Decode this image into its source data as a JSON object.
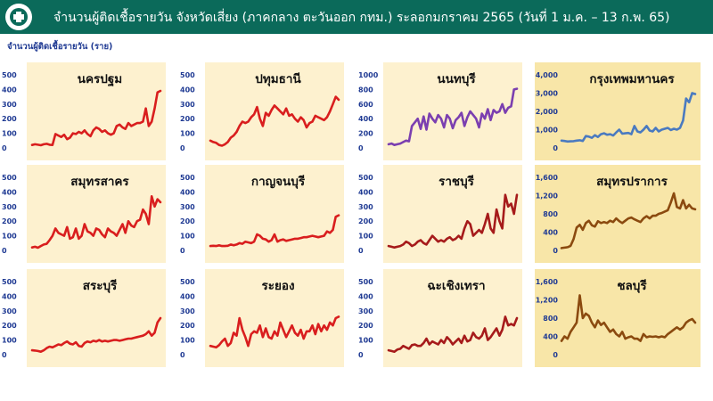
{
  "header": {
    "title": "จำนวนผู้ติดเชื้อรายวัน  จังหวัดเสี่ยง (ภาคกลาง ตะวันออก กทม.) ระลอกมกราคม 2565 (วันที่ 1 ม.ค. – 13 ก.พ. 65)",
    "subtitle": "จำนวนผู้ติดเชื้อรายวัน (ราย)"
  },
  "colors": {
    "header_bg": "#0b6a5a",
    "panel_bg_light": "#fdf1cf",
    "panel_bg_tan": "#f8e6a8",
    "red": "#d91e1e",
    "darkred": "#a61b1b",
    "purple": "#7b3fb0",
    "blue": "#4a7ac0",
    "brown": "#8b4a0f"
  },
  "chart_data": [
    {
      "type": "line",
      "title": "นครปฐม",
      "color": "#d91e1e",
      "ylim": [
        0,
        500
      ],
      "yticks": [
        "0",
        "100",
        "200",
        "300",
        "400",
        "500"
      ],
      "values": [
        20,
        25,
        22,
        18,
        25,
        28,
        22,
        20,
        95,
        85,
        75,
        90,
        60,
        70,
        100,
        95,
        110,
        100,
        120,
        95,
        80,
        120,
        140,
        130,
        110,
        120,
        100,
        90,
        100,
        150,
        160,
        140,
        130,
        170,
        150,
        160,
        170,
        170,
        180,
        270,
        150,
        180,
        270,
        380,
        390
      ]
    },
    {
      "type": "line",
      "title": "ปทุมธานี",
      "color": "#d91e1e",
      "ylim": [
        0,
        500
      ],
      "yticks": [
        "0",
        "100",
        "200",
        "300",
        "400",
        "500"
      ],
      "values": [
        50,
        40,
        35,
        20,
        15,
        25,
        40,
        70,
        85,
        110,
        150,
        180,
        170,
        180,
        210,
        230,
        280,
        200,
        150,
        240,
        220,
        260,
        290,
        270,
        250,
        230,
        270,
        220,
        230,
        200,
        180,
        210,
        190,
        140,
        170,
        180,
        220,
        210,
        200,
        190,
        210,
        250,
        300,
        350,
        330
      ]
    },
    {
      "type": "line",
      "title": "นนทบุรี",
      "color": "#7b3fb0",
      "ylim": [
        0,
        1000
      ],
      "yticks": [
        "0",
        "200",
        "400",
        "600",
        "800",
        "1000"
      ],
      "values": [
        50,
        60,
        40,
        50,
        60,
        80,
        100,
        90,
        300,
        350,
        400,
        260,
        430,
        250,
        470,
        400,
        350,
        450,
        400,
        280,
        450,
        400,
        270,
        380,
        420,
        480,
        300,
        420,
        500,
        450,
        400,
        280,
        470,
        400,
        530,
        380,
        520,
        480,
        500,
        600,
        480,
        550,
        570,
        800,
        810
      ]
    },
    {
      "type": "line",
      "title": "กรุงเทพมหานคร",
      "color": "#4a7ac0",
      "ylim": [
        0,
        4000
      ],
      "yticks": [
        "0",
        "1,000",
        "2,000",
        "3,000",
        "4,000"
      ],
      "values": [
        400,
        380,
        350,
        360,
        370,
        400,
        420,
        380,
        650,
        620,
        550,
        700,
        600,
        750,
        800,
        720,
        750,
        680,
        850,
        1000,
        780,
        800,
        820,
        750,
        1200,
        900,
        850,
        1000,
        1200,
        950,
        900,
        1100,
        900,
        1000,
        1050,
        1100,
        980,
        1050,
        1000,
        1100,
        1500,
        2700,
        2500,
        3000,
        2950
      ]
    },
    {
      "type": "line",
      "title": "สมุทรสาคร",
      "color": "#d91e1e",
      "ylim": [
        0,
        500
      ],
      "yticks": [
        "0",
        "100",
        "200",
        "300",
        "400",
        "500"
      ],
      "values": [
        20,
        25,
        18,
        30,
        40,
        45,
        70,
        100,
        150,
        120,
        110,
        100,
        160,
        80,
        90,
        150,
        80,
        100,
        180,
        130,
        120,
        100,
        150,
        140,
        110,
        90,
        150,
        130,
        120,
        100,
        140,
        180,
        120,
        200,
        170,
        160,
        200,
        210,
        280,
        250,
        180,
        370,
        300,
        350,
        330
      ]
    },
    {
      "type": "line",
      "title": "กาญจนบุรี",
      "color": "#d91e1e",
      "ylim": [
        0,
        500
      ],
      "yticks": [
        "0",
        "100",
        "200",
        "300",
        "400",
        "500"
      ],
      "values": [
        30,
        32,
        30,
        35,
        30,
        30,
        32,
        40,
        35,
        40,
        50,
        45,
        60,
        55,
        50,
        60,
        110,
        100,
        80,
        75,
        60,
        70,
        110,
        60,
        70,
        75,
        65,
        70,
        75,
        80,
        80,
        85,
        90,
        90,
        95,
        100,
        95,
        90,
        95,
        100,
        130,
        120,
        140,
        230,
        240
      ]
    },
    {
      "type": "line",
      "title": "ราชบุรี",
      "color": "#a61b1b",
      "ylim": [
        0,
        500
      ],
      "yticks": [
        "0",
        "100",
        "200",
        "300",
        "400",
        "500"
      ],
      "values": [
        30,
        25,
        20,
        25,
        30,
        40,
        60,
        50,
        30,
        40,
        60,
        70,
        50,
        40,
        70,
        100,
        80,
        60,
        70,
        60,
        80,
        90,
        70,
        80,
        100,
        80,
        150,
        200,
        180,
        100,
        120,
        140,
        120,
        180,
        250,
        150,
        120,
        280,
        200,
        150,
        380,
        300,
        320,
        250,
        380
      ]
    },
    {
      "type": "line",
      "title": "สมุทรปราการ",
      "color": "#8b4a0f",
      "ylim": [
        0,
        1600
      ],
      "yticks": [
        "0",
        "400",
        "800",
        "1,200",
        "1,600"
      ],
      "values": [
        50,
        60,
        70,
        100,
        250,
        500,
        560,
        450,
        600,
        650,
        550,
        520,
        640,
        600,
        620,
        600,
        650,
        620,
        700,
        640,
        600,
        650,
        700,
        720,
        680,
        650,
        620,
        700,
        750,
        700,
        760,
        760,
        800,
        820,
        850,
        880,
        1050,
        1250,
        950,
        920,
        1100,
        920,
        1000,
        920,
        900
      ]
    },
    {
      "type": "line",
      "title": "สระบุรี",
      "color": "#d91e1e",
      "ylim": [
        0,
        500
      ],
      "yticks": [
        "0",
        "100",
        "200",
        "300",
        "400",
        "500"
      ],
      "values": [
        30,
        28,
        25,
        20,
        30,
        45,
        55,
        50,
        60,
        70,
        65,
        80,
        90,
        75,
        70,
        85,
        60,
        55,
        80,
        90,
        85,
        95,
        90,
        100,
        90,
        95,
        90,
        95,
        100,
        100,
        95,
        100,
        105,
        110,
        110,
        115,
        120,
        125,
        130,
        140,
        160,
        130,
        150,
        220,
        250
      ]
    },
    {
      "type": "line",
      "title": "ระยอง",
      "color": "#d91e1e",
      "ylim": [
        0,
        500
      ],
      "yticks": [
        "0",
        "100",
        "200",
        "300",
        "400",
        "500"
      ],
      "values": [
        60,
        55,
        50,
        65,
        90,
        110,
        60,
        80,
        150,
        130,
        250,
        170,
        120,
        60,
        140,
        160,
        150,
        200,
        120,
        180,
        120,
        110,
        160,
        130,
        220,
        170,
        120,
        160,
        200,
        150,
        130,
        170,
        110,
        160,
        160,
        200,
        140,
        210,
        160,
        200,
        170,
        220,
        200,
        250,
        260
      ]
    },
    {
      "type": "line",
      "title": "ฉะเชิงเทรา",
      "color": "#a61b1b",
      "ylim": [
        0,
        500
      ],
      "yticks": [
        "0",
        "100",
        "200",
        "300",
        "400",
        "500"
      ],
      "values": [
        30,
        25,
        20,
        35,
        40,
        60,
        50,
        40,
        65,
        70,
        60,
        60,
        80,
        110,
        70,
        90,
        80,
        70,
        100,
        80,
        120,
        100,
        70,
        90,
        110,
        80,
        130,
        90,
        100,
        150,
        120,
        110,
        130,
        180,
        100,
        120,
        150,
        180,
        130,
        170,
        260,
        200,
        210,
        200,
        250
      ]
    },
    {
      "type": "line",
      "title": "ชลบุรี",
      "color": "#8b4a0f",
      "ylim": [
        0,
        1600
      ],
      "yticks": [
        "0",
        "400",
        "800",
        "1,200",
        "1,600"
      ],
      "values": [
        300,
        400,
        350,
        500,
        600,
        700,
        1300,
        800,
        900,
        850,
        700,
        600,
        750,
        650,
        700,
        600,
        500,
        550,
        450,
        400,
        500,
        350,
        380,
        400,
        350,
        350,
        300,
        450,
        380,
        400,
        390,
        400,
        380,
        400,
        380,
        450,
        500,
        550,
        600,
        550,
        600,
        700,
        750,
        780,
        700
      ]
    }
  ]
}
